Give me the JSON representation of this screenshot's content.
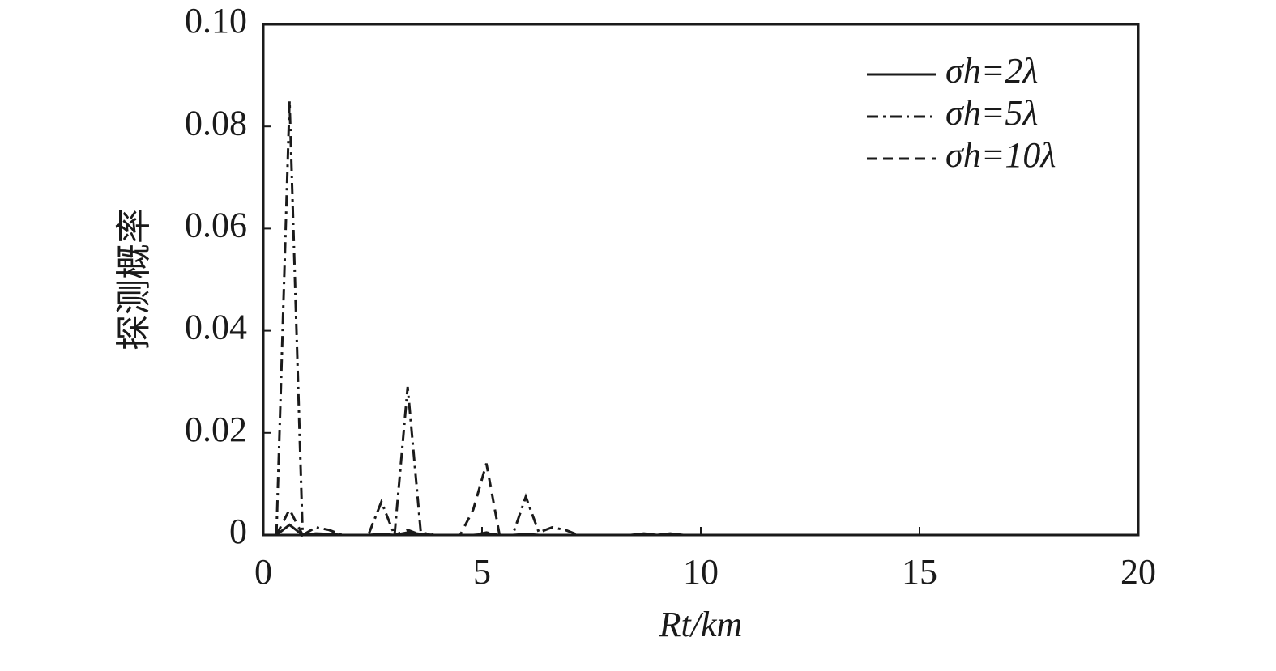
{
  "chart_data": {
    "type": "line",
    "xlabel": "Rt/km",
    "ylabel": "探测概率",
    "x": [
      0.3,
      0.6,
      0.9,
      1.2,
      1.5,
      1.8,
      2.1,
      2.4,
      2.7,
      3.0,
      3.3,
      3.6,
      3.9,
      4.2,
      4.5,
      4.8,
      5.1,
      5.4,
      5.7,
      6.0,
      6.3,
      6.6,
      6.9,
      7.2,
      7.5,
      7.8,
      8.1,
      8.4,
      8.7,
      9.0,
      9.3,
      9.6,
      9.9
    ],
    "series": [
      {
        "name": "σh=2λ",
        "color": "#1a1a1a",
        "dash": "solid",
        "values": [
          0,
          0.002,
          0,
          0.0003,
          0.0002,
          0,
          0,
          0,
          0.0002,
          0,
          0.0005,
          0.0002,
          0,
          0,
          0,
          0,
          0.0002,
          0,
          0,
          0.0002,
          0,
          0,
          0,
          0,
          0,
          0,
          0,
          0,
          0.0003,
          0,
          0.0003,
          0,
          0
        ]
      },
      {
        "name": "σh=5λ",
        "color": "#1a1a1a",
        "dash": "dashdot",
        "values": [
          0,
          0.085,
          0,
          0.0015,
          0.001,
          0,
          0,
          0,
          0.0065,
          0,
          0.029,
          0.0005,
          0,
          0,
          0,
          0,
          0.0005,
          0,
          0,
          0.0075,
          0.0005,
          0.0015,
          0.001,
          0,
          0,
          0,
          0,
          0,
          0,
          0,
          0,
          0,
          0
        ]
      },
      {
        "name": "σh=10λ",
        "color": "#1a1a1a",
        "dash": "dashed",
        "values": [
          0,
          0.005,
          0,
          0,
          0,
          0,
          0,
          0,
          0,
          0,
          0.001,
          0,
          0,
          0,
          0,
          0.005,
          0.014,
          0,
          0,
          0,
          0,
          0,
          0,
          0,
          0,
          0,
          0,
          0,
          0,
          0,
          0,
          0,
          0
        ]
      }
    ],
    "xlim": [
      0,
      20
    ],
    "xticks": [
      0,
      5,
      10,
      15,
      20
    ],
    "ylim": [
      0,
      0.1
    ],
    "yticks": [
      0,
      0.02,
      0.04,
      0.06,
      0.08,
      {
        "value": 0.1,
        "label": "0.10"
      }
    ],
    "legend": "upper right"
  }
}
